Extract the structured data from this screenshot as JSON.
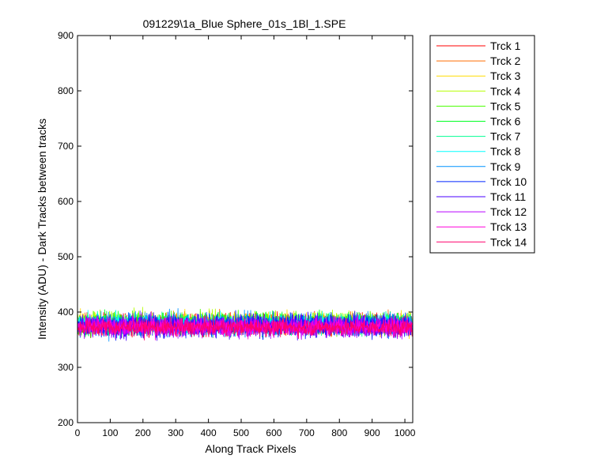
{
  "chart_data": {
    "type": "line",
    "title": "091229\\1a_Blue Sphere_01s_1Bl_1.SPE",
    "xlabel": "Along Track Pixels",
    "ylabel": "Intensity (ADU) - Dark Tracks between tracks",
    "xlim": [
      0,
      1024
    ],
    "ylim": [
      200,
      900
    ],
    "xticks": [
      0,
      100,
      200,
      300,
      400,
      500,
      600,
      700,
      800,
      900,
      1000
    ],
    "yticks": [
      200,
      300,
      400,
      500,
      600,
      700,
      800,
      900
    ],
    "grid": false,
    "legend_position": "outside-right",
    "series": [
      {
        "name": "Trck 1",
        "color": "#ff0000",
        "mean": 378,
        "noise": 16
      },
      {
        "name": "Trck 2",
        "color": "#ff6d00",
        "mean": 378,
        "noise": 16
      },
      {
        "name": "Trck 3",
        "color": "#ffdb00",
        "mean": 380,
        "noise": 16
      },
      {
        "name": "Trck 4",
        "color": "#b6ff00",
        "mean": 381,
        "noise": 16
      },
      {
        "name": "Trck 5",
        "color": "#49ff00",
        "mean": 380,
        "noise": 16
      },
      {
        "name": "Trck 6",
        "color": "#00ff24",
        "mean": 379,
        "noise": 16
      },
      {
        "name": "Trck 7",
        "color": "#00ff92",
        "mean": 378,
        "noise": 16
      },
      {
        "name": "Trck 8",
        "color": "#00ffff",
        "mean": 377,
        "noise": 16
      },
      {
        "name": "Trck 9",
        "color": "#0092ff",
        "mean": 377,
        "noise": 17
      },
      {
        "name": "Trck 10",
        "color": "#0024ff",
        "mean": 376,
        "noise": 17
      },
      {
        "name": "Trck 11",
        "color": "#4900ff",
        "mean": 375,
        "noise": 17
      },
      {
        "name": "Trck 12",
        "color": "#b600ff",
        "mean": 374,
        "noise": 16
      },
      {
        "name": "Trck 13",
        "color": "#ff00db",
        "mean": 373,
        "noise": 15
      },
      {
        "name": "Trck 14",
        "color": "#ff006d",
        "mean": 372,
        "noise": 13
      }
    ]
  }
}
